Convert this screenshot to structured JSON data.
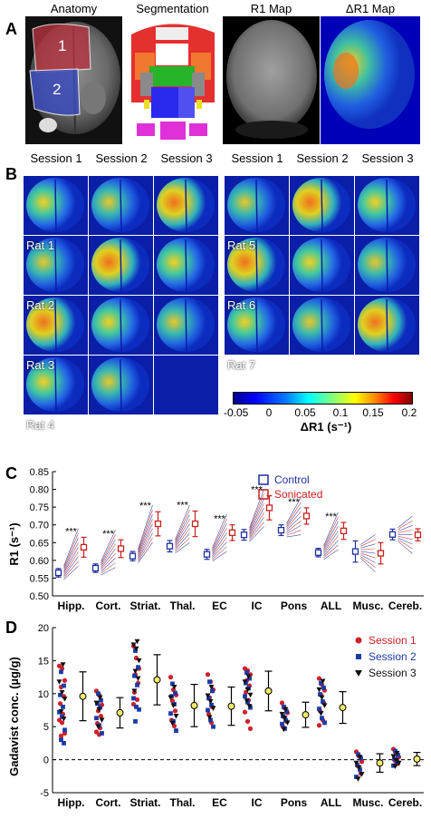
{
  "panel_a": {
    "letter": "A",
    "titles": [
      "Anatomy",
      "Segmentation",
      "R1 Map",
      "ΔR1 Map"
    ],
    "roi_labels": [
      "1",
      "2"
    ]
  },
  "panel_b": {
    "letter": "B",
    "session_titles": [
      "Session 1",
      "Session 2",
      "Session 3"
    ],
    "rats": [
      "Rat 1",
      "Rat 2",
      "Rat 3",
      "Rat 4",
      "Rat 5",
      "Rat 6",
      "Rat 7"
    ],
    "colorbar": {
      "ticks": [
        "-0.05",
        "0",
        "0.05",
        "0.1",
        "0.15",
        "0.2"
      ],
      "label": "ΔR1 (s⁻¹)"
    }
  },
  "panel_c": {
    "letter": "C",
    "legend": [
      "Control",
      "Sonicated"
    ]
  },
  "panel_d": {
    "letter": "D",
    "legend": [
      "Session 1",
      "Session 2",
      "Session 3"
    ]
  },
  "colors": {
    "control": "#1f2f9c",
    "sonicated": "#c8201e",
    "session1": "#d0202a",
    "session2": "#1a3aa8",
    "session3": "#111111",
    "mean_marker": "#f2ec6a"
  },
  "chart_data": [
    {
      "type": "scatter",
      "panel": "C",
      "ylabel": "R1 (s⁻¹)",
      "ylim": [
        0.5,
        0.85
      ],
      "yticks": [
        "0.50",
        "0.55",
        "0.60",
        "0.65",
        "0.70",
        "0.75",
        "0.80",
        "0.85"
      ],
      "categories": [
        "Hipp.",
        "Cort.",
        "Striat.",
        "Thal.",
        "EC",
        "IC",
        "Pons",
        "ALL",
        "Musc.",
        "Cereb."
      ],
      "significance": [
        "***",
        "***",
        "***",
        "***",
        "***",
        "***",
        "***",
        "***",
        "",
        ""
      ],
      "series": [
        {
          "name": "Control",
          "mean": [
            0.565,
            0.578,
            0.612,
            0.64,
            0.617,
            0.672,
            0.685,
            0.622,
            0.625,
            0.673
          ],
          "err": [
            0.012,
            0.012,
            0.013,
            0.016,
            0.014,
            0.015,
            0.015,
            0.012,
            0.03,
            0.015
          ]
        },
        {
          "name": "Sonicated",
          "mean": [
            0.637,
            0.633,
            0.703,
            0.703,
            0.678,
            0.748,
            0.725,
            0.683,
            0.62,
            0.672
          ],
          "err": [
            0.028,
            0.025,
            0.034,
            0.036,
            0.022,
            0.034,
            0.023,
            0.024,
            0.03,
            0.017
          ]
        }
      ],
      "grid": false,
      "legend": "top-right"
    },
    {
      "type": "scatter",
      "panel": "D",
      "ylabel": "Gadavist conc. (µg/g)",
      "ylim": [
        -5,
        20
      ],
      "yticks": [
        "-5",
        "0",
        "5",
        "10",
        "15",
        "20"
      ],
      "categories": [
        "Hipp.",
        "Cort.",
        "Striat.",
        "Thal.",
        "EC",
        "IC",
        "Pons",
        "ALL",
        "Musc.",
        "Cereb."
      ],
      "mean": [
        9.6,
        7.1,
        12.1,
        8.2,
        8.1,
        10.4,
        6.8,
        7.9,
        -0.5,
        0.1
      ],
      "err": [
        3.7,
        2.3,
        3.8,
        3.2,
        2.9,
        3.0,
        1.9,
        2.4,
        1.4,
        1.0
      ],
      "series": [
        {
          "name": "Session 1",
          "values": [
            [
              14.2,
              13.8,
              12.0,
              11.0,
              9.6,
              8.5,
              6.9,
              6.0,
              5.6,
              4.0,
              3.6
            ],
            [
              10.4,
              9.8,
              8.3,
              7.4,
              6.6,
              5.5,
              4.8,
              4.2,
              3.8
            ],
            [
              17.2,
              15.4,
              13.8,
              12.9,
              11.6,
              10.2,
              9.1,
              8.4
            ],
            [
              12.5,
              10.6,
              9.8,
              8.9,
              7.4,
              6.0,
              5.1
            ],
            [
              12.9,
              11.8,
              10.6,
              9.4,
              8.0,
              6.9,
              5.6
            ],
            [
              13.8,
              13.5,
              12.9,
              12.0,
              11.2,
              10.2,
              9.0,
              7.2,
              5.8,
              4.7
            ],
            [
              8.6,
              7.8,
              7.1,
              6.5,
              5.8,
              5.0
            ],
            [
              12.3,
              11.4,
              10.5,
              9.8,
              8.6,
              7.4,
              6.0,
              5.2
            ],
            [
              1.2,
              0.5,
              -0.3,
              -1.0,
              -2.1
            ],
            [
              1.6,
              0.9,
              0.4,
              -0.2,
              -0.6
            ]
          ]
        },
        {
          "name": "Session 2",
          "values": [
            [
              13.3,
              11.2,
              9.8,
              8.0,
              7.2,
              6.5,
              4.5,
              3.0,
              2.5
            ],
            [
              10.0,
              9.0,
              8.5,
              7.9,
              6.3,
              5.2,
              4.0
            ],
            [
              16.5,
              14.0,
              12.7,
              11.3,
              9.3,
              8.0,
              7.6,
              5.8
            ],
            [
              11.5,
              10.1,
              9.6,
              8.4,
              7.0,
              5.8,
              4.4
            ],
            [
              11.8,
              10.4,
              9.3,
              8.3,
              7.5,
              6.0,
              5.0
            ],
            [
              13.2,
              12.3,
              11.6,
              10.8,
              9.6,
              8.7,
              7.9
            ],
            [
              8.0,
              7.3,
              6.6,
              6.0,
              5.4,
              4.7
            ],
            [
              11.6,
              10.9,
              9.9,
              8.8,
              7.7,
              6.3,
              5.6
            ],
            [
              0.8,
              0.2,
              -0.8,
              -1.5,
              -2.6
            ],
            [
              1.3,
              0.7,
              0.1,
              -0.3,
              -0.9
            ]
          ]
        },
        {
          "name": "Session 3",
          "values": [
            [
              14.4,
              11.8,
              10.2,
              9.2,
              7.3,
              6.2
            ],
            [
              9.4,
              8.6,
              7.6,
              6.0,
              5.0
            ],
            [
              17.9,
              17.4,
              16.8,
              15.0,
              13.4,
              12.3,
              10.4
            ],
            [
              11.0,
              9.4,
              8.2,
              6.6,
              5.5
            ],
            [
              11.0,
              9.7,
              8.8,
              7.8,
              6.4
            ],
            [
              12.6,
              11.8,
              10.6,
              9.8,
              8.9,
              8.1
            ],
            [
              7.6,
              6.9,
              6.3,
              5.6,
              4.6
            ],
            [
              11.9,
              10.6,
              9.4,
              8.2,
              7.0
            ],
            [
              0.4,
              -0.5,
              -1.2,
              -2.2,
              -2.9
            ],
            [
              1.0,
              0.5,
              -0.1,
              -0.5,
              -1.0
            ]
          ]
        }
      ],
      "reference_line": 0,
      "grid": false,
      "legend": "top-right"
    }
  ]
}
